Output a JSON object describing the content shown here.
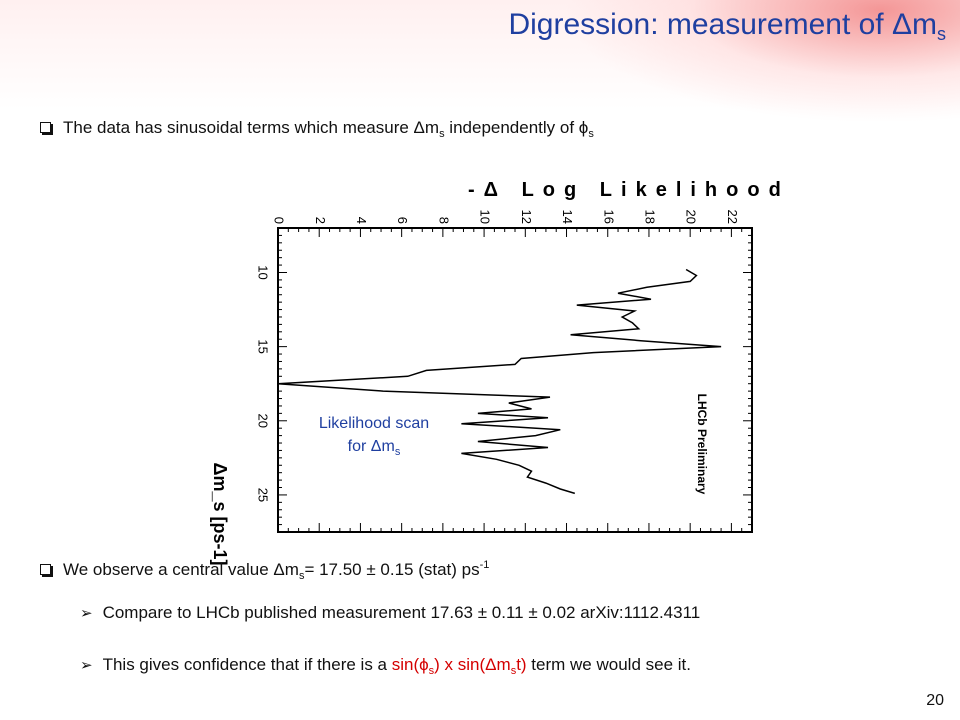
{
  "slide": {
    "title_prefix": "Digression: measurement of Δm",
    "title_sub": "s",
    "bullet1": {
      "text_a": "The data has sinusoidal terms which measure Δm",
      "sub_a": "s",
      "text_b": " independently of  ϕ",
      "sub_b": "s"
    },
    "bullet2": {
      "text_a": "We observe a central value Δm",
      "sub_a": "s",
      "text_b": "= 17.50 ± 0.15 (stat)  ps",
      "sup": "-1"
    },
    "bullet3": {
      "text": "Compare to LHCb published measurement  17.63 ± 0.11 ± 0.02    arXiv:1112.4311"
    },
    "bullet4": {
      "text_a": "This gives confidence that if there is a ",
      "red_a": "sin(ϕ",
      "red_sub_a": "s",
      "red_b": ") x sin(Δm",
      "red_sub_b": "s",
      "red_c": "t)",
      "text_b": "  term we would see it."
    },
    "overlay": {
      "line1": "Likelihood scan",
      "line2": "for Δm",
      "line2_sub": "s"
    },
    "page_number": "20"
  },
  "chart_data": {
    "type": "line",
    "title": "-Δ Log Likelihood",
    "xlabel": "Δm_s [ps-1]",
    "ylabel": "-Δ Log Likelihood",
    "annotation": "LHCb Preliminary",
    "x_ticks": [
      "10",
      "15",
      "20",
      "25"
    ],
    "y_ticks": [
      "0",
      "2",
      "4",
      "6",
      "8",
      "10",
      "12",
      "14",
      "16",
      "18",
      "20",
      "22"
    ],
    "xlim": [
      7,
      27.5
    ],
    "ylim": [
      0,
      23
    ],
    "grid": false,
    "series": [
      {
        "x": [
          9.8,
          10.2,
          10.6,
          11.0,
          11.4,
          11.8,
          12.2,
          12.6,
          13.0,
          13.4,
          13.8,
          14.2,
          14.6,
          15.0,
          15.4,
          15.8,
          16.2,
          16.6,
          17.0,
          17.5,
          18.0,
          18.4,
          18.8,
          19.2,
          19.5,
          19.8,
          20.2,
          20.6,
          21.0,
          21.4,
          21.8,
          22.2,
          22.6,
          23.0,
          23.4,
          23.8,
          24.2,
          24.6,
          24.9
        ],
        "y": [
          19.8,
          20.3,
          20.0,
          17.9,
          16.5,
          18.1,
          14.5,
          17.3,
          16.7,
          17.2,
          17.5,
          14.2,
          17.6,
          21.5,
          15.3,
          11.8,
          11.5,
          7.2,
          6.3,
          0.0,
          5.1,
          13.2,
          11.2,
          12.3,
          9.7,
          13.1,
          8.9,
          13.7,
          12.5,
          9.7,
          13.1,
          8.9,
          10.6,
          11.7,
          12.3,
          12.1,
          13.0,
          13.7,
          14.4
        ]
      }
    ]
  }
}
